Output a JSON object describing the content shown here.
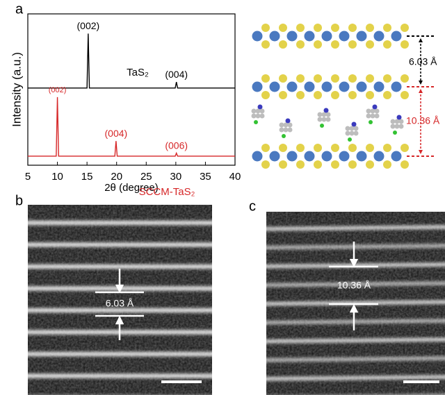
{
  "panel_labels": [
    "a",
    "b",
    "c"
  ],
  "chart_data": {
    "type": "line",
    "xlabel": "2θ (degree)",
    "ylabel": "Intensity (a.u.)",
    "xlim": [
      5,
      40
    ],
    "xticks": [
      5,
      10,
      15,
      20,
      25,
      30,
      35,
      40
    ],
    "ylim": [
      0,
      100
    ],
    "series": [
      {
        "name": "TaS₂",
        "color": "#000000",
        "x": [
          5,
          15.0,
          15.2,
          15.4,
          29.9,
          30.1,
          30.3,
          40
        ],
        "values": [
          51,
          51,
          87,
          51,
          51,
          55,
          51,
          51
        ],
        "peak_labels": [
          {
            "x": 15.2,
            "label": "(002)"
          },
          {
            "x": 30.1,
            "label": "(004)"
          }
        ]
      },
      {
        "name": "SCCM-TaS₂",
        "color": "#d62728",
        "x": [
          5,
          9.8,
          10,
          10.2,
          19.7,
          19.9,
          20.1,
          29.9,
          30.1,
          30.3,
          40
        ],
        "values": [
          6,
          6,
          45,
          6,
          6,
          16,
          6,
          6,
          8,
          6,
          6
        ],
        "peak_labels": [
          {
            "x": 10,
            "label": "(002)"
          },
          {
            "x": 19.9,
            "label": "(004)"
          },
          {
            "x": 30.1,
            "label": "(006)"
          }
        ]
      }
    ]
  },
  "structure": {
    "tas2_spacing": "6.03 Å",
    "sccm_spacing": "10.36 Å"
  },
  "tem": {
    "b_spacing": "6.03 Å",
    "c_spacing": "10.36 Å"
  }
}
